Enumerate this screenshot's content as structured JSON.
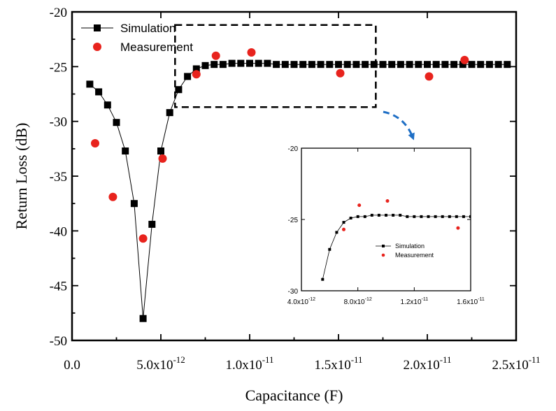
{
  "chart_data": [
    {
      "type": "scatter",
      "xlabel": "Capacitance (F)",
      "ylabel": "Return Loss (dB)",
      "xlim": [
        0,
        2.5e-11
      ],
      "ylim": [
        -50,
        -20
      ],
      "x_ticks": [
        0,
        5e-12,
        1e-11,
        1.5e-11,
        2e-11,
        2.5e-11
      ],
      "x_tick_labels": [
        {
          "mantissa": "0.0",
          "exponent": ""
        },
        {
          "mantissa": "5.0x10",
          "exponent": "-12"
        },
        {
          "mantissa": "1.0x10",
          "exponent": "-11"
        },
        {
          "mantissa": "1.5x10",
          "exponent": "-11"
        },
        {
          "mantissa": "2.0x10",
          "exponent": "-11"
        },
        {
          "mantissa": "2.5x10",
          "exponent": "-11"
        }
      ],
      "y_ticks": [
        -50,
        -45,
        -40,
        -35,
        -30,
        -25,
        -20
      ],
      "y_tick_labels": [
        "-50",
        "-45",
        "-40",
        "-35",
        "-30",
        "-25",
        "-20"
      ],
      "legend_position": "top-left",
      "grid": false,
      "series": [
        {
          "name": "Simulation",
          "style": "line-square",
          "color": "#000000",
          "x": [
            1e-12,
            1.5e-12,
            2e-12,
            2.5e-12,
            3e-12,
            3.5e-12,
            4e-12,
            4.5e-12,
            5e-12,
            5.5e-12,
            6e-12,
            6.5e-12,
            7e-12,
            7.5e-12,
            8e-12,
            8.5e-12,
            9e-12,
            9.5e-12,
            1e-11,
            1.05e-11,
            1.1e-11,
            1.15e-11,
            1.2e-11,
            1.25e-11,
            1.3e-11,
            1.35e-11,
            1.4e-11,
            1.45e-11,
            1.5e-11,
            1.55e-11,
            1.6e-11,
            1.65e-11,
            1.7e-11,
            1.75e-11,
            1.8e-11,
            1.85e-11,
            1.9e-11,
            1.95e-11,
            2e-11,
            2.05e-11,
            2.1e-11,
            2.15e-11,
            2.2e-11,
            2.25e-11,
            2.3e-11,
            2.35e-11,
            2.4e-11,
            2.45e-11
          ],
          "y": [
            -26.6,
            -27.3,
            -28.5,
            -30.1,
            -32.7,
            -37.5,
            -48.0,
            -39.4,
            -32.7,
            -29.2,
            -27.1,
            -25.9,
            -25.2,
            -24.9,
            -24.8,
            -24.8,
            -24.7,
            -24.7,
            -24.7,
            -24.7,
            -24.7,
            -24.8,
            -24.8,
            -24.8,
            -24.8,
            -24.8,
            -24.8,
            -24.8,
            -24.8,
            -24.8,
            -24.8,
            -24.8,
            -24.8,
            -24.8,
            -24.8,
            -24.8,
            -24.8,
            -24.8,
            -24.8,
            -24.8,
            -24.8,
            -24.8,
            -24.8,
            -24.8,
            -24.8,
            -24.8,
            -24.8,
            -24.8
          ]
        },
        {
          "name": "Measurement",
          "style": "circle",
          "color": "#e8231d",
          "x": [
            1.3e-12,
            2.3e-12,
            4e-12,
            5.1e-12,
            7e-12,
            8.1e-12,
            1.01e-11,
            1.51e-11,
            2.01e-11,
            2.21e-11
          ],
          "y": [
            -32.0,
            -36.9,
            -40.7,
            -33.4,
            -25.7,
            -24.0,
            -23.7,
            -25.6,
            -25.9,
            -24.4
          ]
        }
      ]
    },
    {
      "type": "scatter",
      "xlim": [
        4e-12,
        1.6e-11
      ],
      "ylim": [
        -30,
        -20
      ],
      "x_ticks": [
        4e-12,
        8e-12,
        1.2e-11,
        1.6e-11
      ],
      "x_tick_labels": [
        {
          "mantissa": "4.0x10",
          "exponent": "-12"
        },
        {
          "mantissa": "8.0x10",
          "exponent": "-12"
        },
        {
          "mantissa": "1.2x10",
          "exponent": "-11"
        },
        {
          "mantissa": "1.6x10",
          "exponent": "-11"
        }
      ],
      "y_ticks": [
        -30,
        -25,
        -20
      ],
      "y_tick_labels": [
        "-30",
        "-25",
        "-20"
      ],
      "legend_position": "middle-left",
      "grid": false,
      "series": [
        {
          "name": "Simulation",
          "style": "line-square",
          "color": "#000000",
          "x": [
            5.5e-12,
            6e-12,
            6.5e-12,
            7e-12,
            7.5e-12,
            8e-12,
            8.5e-12,
            9e-12,
            9.5e-12,
            1e-11,
            1.05e-11,
            1.1e-11,
            1.15e-11,
            1.2e-11,
            1.25e-11,
            1.3e-11,
            1.35e-11,
            1.4e-11,
            1.45e-11,
            1.5e-11,
            1.55e-11,
            1.6e-11
          ],
          "y": [
            -29.2,
            -27.1,
            -25.9,
            -25.2,
            -24.9,
            -24.8,
            -24.8,
            -24.7,
            -24.7,
            -24.7,
            -24.7,
            -24.7,
            -24.8,
            -24.8,
            -24.8,
            -24.8,
            -24.8,
            -24.8,
            -24.8,
            -24.8,
            -24.8,
            -24.8
          ]
        },
        {
          "name": "Measurement",
          "style": "circle",
          "color": "#e8231d",
          "x": [
            7e-12,
            8.1e-12,
            1.01e-11,
            1.51e-11
          ],
          "y": [
            -25.7,
            -24.0,
            -23.7,
            -25.6
          ]
        }
      ]
    }
  ],
  "zoom_box": {
    "xlim": [
      5.8e-12,
      1.71e-11
    ],
    "ylim": [
      -28.7,
      -21.2
    ]
  }
}
